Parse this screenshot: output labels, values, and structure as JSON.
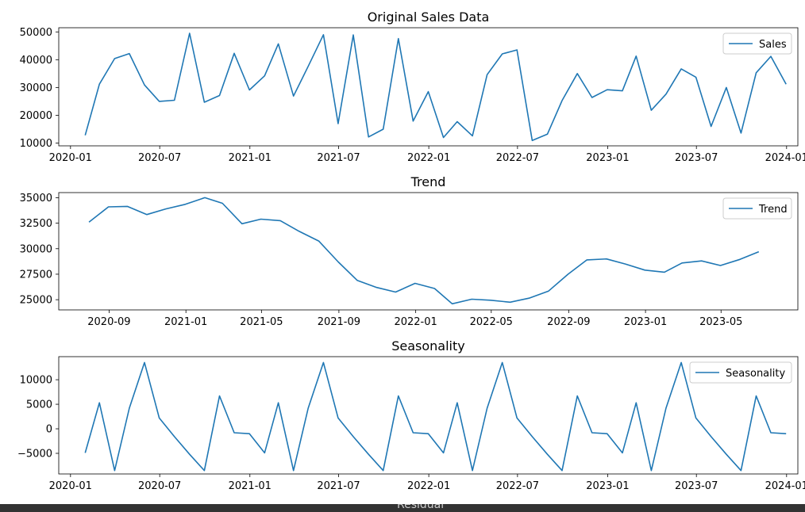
{
  "chart_data": [
    {
      "type": "line",
      "title": "Original Sales Data",
      "xlabel": "",
      "ylabel": "",
      "x_type": "date",
      "xlim": [
        "2019-12-08",
        "2024-01-24"
      ],
      "ylim": [
        9000,
        51500
      ],
      "x_ticks": [
        "2020-01",
        "2020-07",
        "2021-01",
        "2021-07",
        "2022-01",
        "2022-07",
        "2023-01",
        "2023-07",
        "2024-01"
      ],
      "y_ticks": [
        10000,
        20000,
        30000,
        40000,
        50000
      ],
      "legend_position": "upper right",
      "grid": false,
      "series": [
        {
          "name": "Sales",
          "color": "#1f77b4",
          "x": [
            "2020-01-31",
            "2020-02-29",
            "2020-03-31",
            "2020-04-30",
            "2020-05-31",
            "2020-06-30",
            "2020-07-31",
            "2020-08-31",
            "2020-09-30",
            "2020-10-31",
            "2020-11-30",
            "2020-12-31",
            "2021-01-31",
            "2021-02-28",
            "2021-03-31",
            "2021-04-30",
            "2021-05-31",
            "2021-06-30",
            "2021-07-31",
            "2021-08-31",
            "2021-09-30",
            "2021-10-31",
            "2021-11-30",
            "2021-12-31",
            "2022-01-31",
            "2022-02-28",
            "2022-03-31",
            "2022-04-30",
            "2022-05-31",
            "2022-06-30",
            "2022-07-31",
            "2022-08-31",
            "2022-09-30",
            "2022-10-31",
            "2022-11-30",
            "2022-12-31",
            "2023-01-31",
            "2023-02-28",
            "2023-03-31",
            "2023-04-30",
            "2023-05-31",
            "2023-06-30",
            "2023-07-31",
            "2023-08-31",
            "2023-09-30",
            "2023-10-31",
            "2023-11-30",
            "2023-12-31"
          ],
          "values": [
            12800,
            31200,
            40400,
            42200,
            30900,
            25000,
            25400,
            49500,
            24700,
            27100,
            42300,
            29100,
            34200,
            45700,
            26900,
            37600,
            49000,
            17000,
            48900,
            12200,
            15000,
            47600,
            17900,
            28500,
            12000,
            17700,
            12600,
            34600,
            42100,
            43500,
            10900,
            13200,
            25300,
            35000,
            26400,
            29200,
            28800,
            41300,
            21800,
            27600,
            36700,
            33700,
            16000,
            30000,
            13600,
            35300,
            41200,
            31200
          ]
        }
      ]
    },
    {
      "type": "line",
      "title": "Trend",
      "xlabel": "",
      "ylabel": "",
      "x_type": "date",
      "xlim": [
        "2020-06-13",
        "2023-08-31"
      ],
      "ylim": [
        24000,
        35500
      ],
      "x_ticks": [
        "2020-09",
        "2021-01",
        "2021-05",
        "2021-09",
        "2022-01",
        "2022-05",
        "2022-09",
        "2023-01",
        "2023-05"
      ],
      "y_ticks": [
        25000,
        27500,
        30000,
        32500,
        35000
      ],
      "legend_position": "upper right",
      "grid": false,
      "series": [
        {
          "name": "Trend",
          "color": "#1f77b4",
          "x": [
            "2020-07-31",
            "2020-08-31",
            "2020-09-30",
            "2020-10-31",
            "2020-11-30",
            "2020-12-31",
            "2021-01-31",
            "2021-02-28",
            "2021-03-31",
            "2021-04-30",
            "2021-05-31",
            "2021-06-30",
            "2021-07-31",
            "2021-08-31",
            "2021-09-30",
            "2021-10-31",
            "2021-11-30",
            "2021-12-31",
            "2022-01-31",
            "2022-02-28",
            "2022-03-31",
            "2022-04-30",
            "2022-05-31",
            "2022-06-30",
            "2022-07-31",
            "2022-08-31",
            "2022-09-30",
            "2022-10-31",
            "2022-11-30",
            "2022-12-31",
            "2023-01-31",
            "2023-02-28",
            "2023-03-31",
            "2023-04-30",
            "2023-05-31",
            "2023-06-30"
          ],
          "values": [
            32600,
            34100,
            34150,
            33350,
            33900,
            34350,
            35000,
            34450,
            32450,
            32900,
            32750,
            31700,
            30750,
            28700,
            26900,
            26200,
            25750,
            26600,
            26100,
            24600,
            25050,
            24950,
            24750,
            25150,
            25850,
            27500,
            28900,
            29000,
            28500,
            27900,
            27700,
            28600,
            28800,
            28350,
            28950,
            29700
          ]
        }
      ]
    },
    {
      "type": "line",
      "title": "Seasonality",
      "xlabel": "",
      "ylabel": "",
      "x_type": "date",
      "xlim": [
        "2019-12-08",
        "2024-01-24"
      ],
      "ylim": [
        -9200,
        14700
      ],
      "x_ticks": [
        "2020-01",
        "2020-07",
        "2021-01",
        "2021-07",
        "2022-01",
        "2022-07",
        "2023-01",
        "2023-07",
        "2024-01"
      ],
      "y_ticks": [
        -5000,
        0,
        5000,
        10000
      ],
      "legend_position": "upper right",
      "grid": false,
      "series": [
        {
          "name": "Seasonality",
          "color": "#1f77b4",
          "x": [
            "2020-01-31",
            "2020-02-29",
            "2020-03-31",
            "2020-04-30",
            "2020-05-31",
            "2020-06-30",
            "2020-07-31",
            "2020-08-31",
            "2020-09-30",
            "2020-10-31",
            "2020-11-30",
            "2020-12-31",
            "2021-01-31",
            "2021-02-28",
            "2021-03-31",
            "2021-04-30",
            "2021-05-31",
            "2021-06-30",
            "2021-07-31",
            "2021-08-31",
            "2021-09-30",
            "2021-10-31",
            "2021-11-30",
            "2021-12-31",
            "2022-01-31",
            "2022-02-28",
            "2022-03-31",
            "2022-04-30",
            "2022-05-31",
            "2022-06-30",
            "2022-07-31",
            "2022-08-31",
            "2022-09-30",
            "2022-10-31",
            "2022-11-30",
            "2022-12-31",
            "2023-01-31",
            "2023-02-28",
            "2023-03-31",
            "2023-04-30",
            "2023-05-31",
            "2023-06-30",
            "2023-07-31",
            "2023-08-31",
            "2023-09-30",
            "2023-10-31",
            "2023-11-30",
            "2023-12-31"
          ],
          "values": [
            -4900,
            5300,
            -8500,
            4200,
            13500,
            2200,
            -1600,
            -5200,
            -8500,
            6700,
            -800,
            -1000,
            -4900,
            5300,
            -8500,
            4200,
            13500,
            2200,
            -1600,
            -5200,
            -8500,
            6700,
            -800,
            -1000,
            -4900,
            5300,
            -8500,
            4200,
            13500,
            2200,
            -1600,
            -5200,
            -8500,
            6700,
            -800,
            -1000,
            -4900,
            5300,
            -8500,
            4200,
            13500,
            2200,
            -1600,
            -5200,
            -8500,
            6700,
            -800,
            -1000
          ]
        }
      ]
    }
  ],
  "bottom_bar": {
    "label": "Residual",
    "color": "#333333"
  }
}
